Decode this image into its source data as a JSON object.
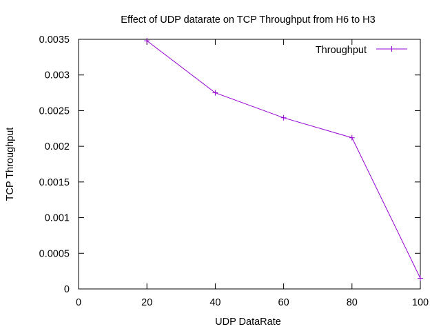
{
  "chart_data": {
    "type": "line",
    "title": "Effect of UDP datarate on TCP Throughput from H6 to H3",
    "xlabel": "UDP DataRate",
    "ylabel": "TCP Throughput",
    "xlim": [
      0,
      100
    ],
    "ylim": [
      0,
      0.0035
    ],
    "xticks": [
      0,
      20,
      40,
      60,
      80,
      100
    ],
    "xtick_labels": [
      "0",
      "20",
      "40",
      "60",
      "80",
      "100"
    ],
    "yticks": [
      0,
      0.0005,
      0.001,
      0.0015,
      0.002,
      0.0025,
      0.003,
      0.0035
    ],
    "ytick_labels": [
      "0",
      "0.0005",
      "0.001",
      "0.0015",
      "0.002",
      "0.0025",
      "0.003",
      "0.0035"
    ],
    "grid": false,
    "legend_position": "top-right",
    "series": [
      {
        "name": "Throughput",
        "color": "#9400d3",
        "marker": "plus",
        "x": [
          20,
          40,
          60,
          80,
          100
        ],
        "y": [
          0.00348,
          0.00275,
          0.0024,
          0.00212,
          0.00015
        ]
      }
    ]
  }
}
